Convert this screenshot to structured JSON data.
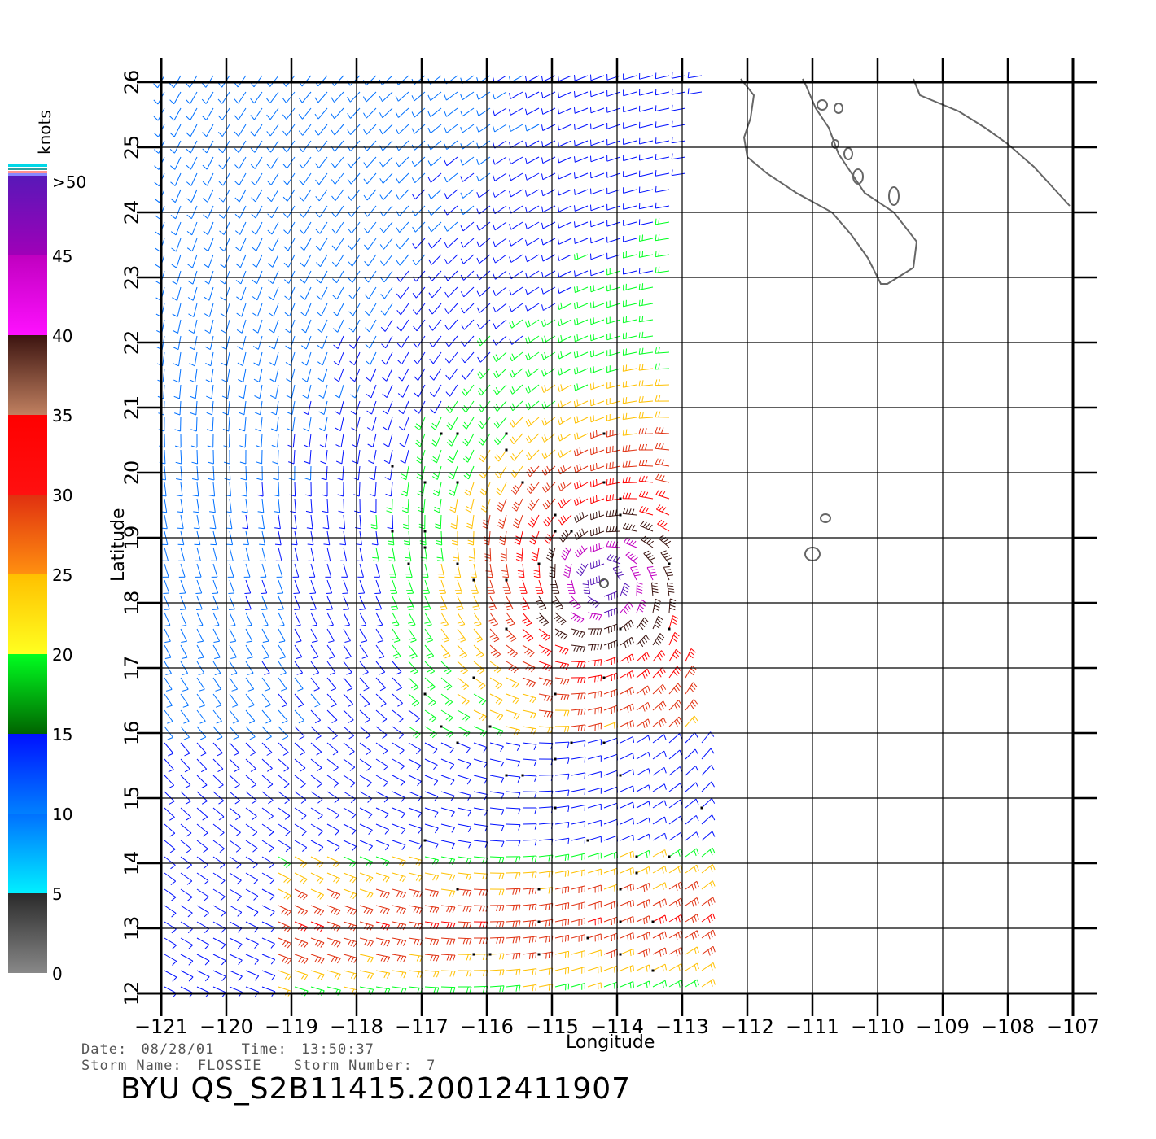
{
  "map": {
    "lon_range": [
      -121,
      -107
    ],
    "lat_range": [
      12,
      26
    ],
    "lon_ticks": [
      "−121",
      "−120",
      "−119",
      "−118",
      "−117",
      "−116",
      "−115",
      "−114",
      "−113",
      "−112",
      "−111",
      "−110",
      "−109",
      "−108",
      "−107"
    ],
    "lat_ticks": [
      "12",
      "13",
      "14",
      "15",
      "16",
      "17",
      "18",
      "19",
      "20",
      "21",
      "22",
      "23",
      "24",
      "25",
      "26"
    ],
    "xlabel": "Longitude",
    "ylabel": "Latitude",
    "storm_center": {
      "lon": -114.2,
      "lat": 18.3
    },
    "eye_ring_color": "#555555",
    "coastline_color": "#666666"
  },
  "colorbar": {
    "unit": "knots",
    "labels": [
      ">50",
      "45",
      "40",
      "35",
      "30",
      "25",
      "20",
      "15",
      "10",
      "5",
      "0"
    ],
    "bands": [
      {
        "range": "0-5",
        "colors": [
          "#888888",
          "#2a2a2a"
        ]
      },
      {
        "range": "5-10",
        "colors": [
          "#00f0ff",
          "#0070ff"
        ]
      },
      {
        "range": "10-15",
        "colors": [
          "#0080ff",
          "#0010ff"
        ]
      },
      {
        "range": "15-20",
        "colors": [
          "#006400",
          "#00ff20"
        ]
      },
      {
        "range": "20-25",
        "colors": [
          "#ffff20",
          "#ffc000"
        ]
      },
      {
        "range": "25-30",
        "colors": [
          "#ff9010",
          "#e03010"
        ]
      },
      {
        "range": "30-35",
        "colors": [
          "#ff1010",
          "#ff0000"
        ]
      },
      {
        "range": "35-40",
        "colors": [
          "#c08060",
          "#3c1410"
        ]
      },
      {
        "range": "40-45",
        "colors": [
          "#ff10ff",
          "#c000c0"
        ]
      },
      {
        "range": "45-50",
        "colors": [
          "#a000b8",
          "#5818b8"
        ]
      }
    ]
  },
  "info": {
    "date_label": "Date:",
    "date": "08/28/01",
    "time_label": "Time:",
    "time": "13:50:37",
    "storm_name_label": "Storm  Name:",
    "storm_name": "FLOSSIE",
    "storm_number_label": "Storm  Number:",
    "storm_number": "7",
    "title": "BYU  QS_S2B11415.20012411907"
  }
}
